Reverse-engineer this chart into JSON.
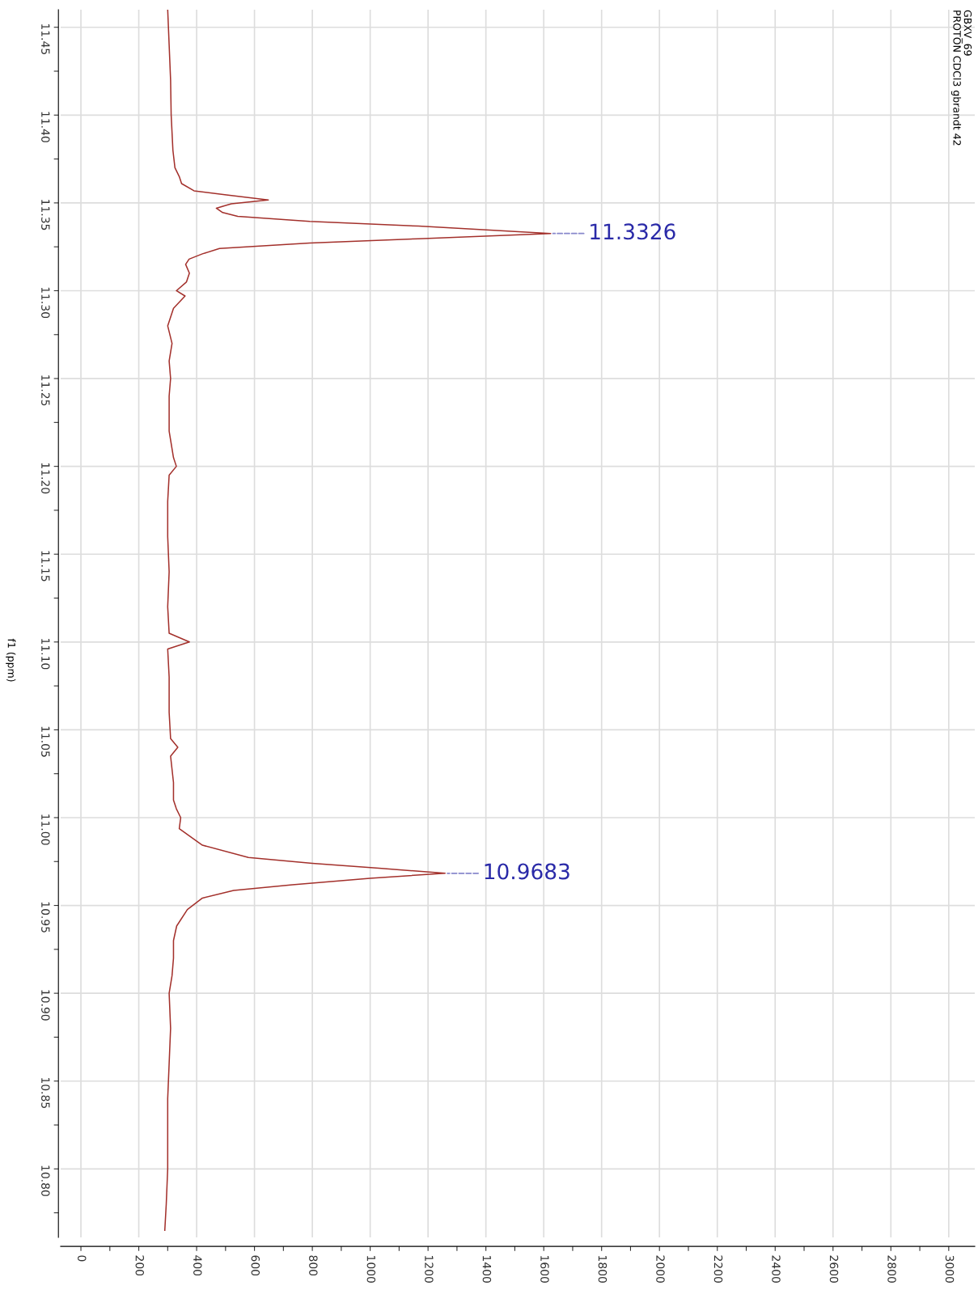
{
  "chart_data": {
    "type": "line",
    "title": "GBXV_69",
    "subtitle": "PROTON CDCl3 gbrandt 42",
    "ylabel": "f1 (ppm)",
    "series": [
      {
        "color": "#a3302b",
        "values": [
          11.46,
          11.44,
          11.42,
          11.4,
          11.38,
          11.37,
          11.365,
          11.361,
          11.3569,
          11.3545,
          11.3517,
          11.3495,
          11.347,
          11.3445,
          11.3423,
          11.3395,
          11.3368,
          11.3326,
          11.3296,
          11.3272,
          11.324,
          11.321,
          11.318,
          11.315,
          11.31,
          11.305,
          11.3,
          11.297,
          11.29,
          11.28,
          11.27,
          11.26,
          11.25,
          11.24,
          11.22,
          11.205,
          11.2,
          11.195,
          11.18,
          11.16,
          11.14,
          11.12,
          11.105,
          11.1,
          11.096,
          11.08,
          11.06,
          11.045,
          11.04,
          11.035,
          11.02,
          11.01,
          11.005,
          11.0,
          10.9937,
          10.9843,
          10.9773,
          10.974,
          10.9712,
          10.9683,
          10.9655,
          10.9618,
          10.9585,
          10.9542,
          10.9477,
          10.9383,
          10.93,
          10.92,
          10.91,
          10.9,
          10.88,
          10.86,
          10.84,
          10.82,
          10.8,
          10.78,
          10.765
        ],
        "x": [
          300,
          305,
          310,
          312,
          318,
          325,
          340,
          348,
          391,
          503,
          648,
          520,
          468,
          490,
          542,
          791,
          1167,
          1624,
          1167,
          791,
          479,
          420,
          374,
          362,
          375,
          365,
          330,
          360,
          320,
          300,
          315,
          305,
          310,
          305,
          305,
          320,
          330,
          305,
          300,
          300,
          305,
          300,
          305,
          375,
          300,
          305,
          305,
          310,
          335,
          310,
          320,
          320,
          330,
          345,
          340,
          420,
          579,
          800,
          1030,
          1259,
          999,
          731,
          528,
          420,
          368,
          331,
          320,
          320,
          315,
          305,
          310,
          305,
          300,
          300,
          300,
          295,
          290
        ]
      }
    ],
    "annotations": [
      {
        "text": "11.3326",
        "x": 1624,
        "y": 11.3326
      },
      {
        "text": "10.9683",
        "x": 1259,
        "y": 10.9683
      }
    ],
    "ylim": [
      10.761,
      11.46
    ],
    "yticks": [
      {
        "value": 11.45,
        "label": "11.45"
      },
      {
        "value": 11.425,
        "label": null
      },
      {
        "value": 11.4,
        "label": "11.40"
      },
      {
        "value": 11.375,
        "label": null
      },
      {
        "value": 11.35,
        "label": "11.35"
      },
      {
        "value": 11.325,
        "label": null
      },
      {
        "value": 11.3,
        "label": "11.30"
      },
      {
        "value": 11.275,
        "label": null
      },
      {
        "value": 11.25,
        "label": "11.25"
      },
      {
        "value": 11.225,
        "label": null
      },
      {
        "value": 11.2,
        "label": "11.20"
      },
      {
        "value": 11.175,
        "label": null
      },
      {
        "value": 11.15,
        "label": "11.15"
      },
      {
        "value": 11.125,
        "label": null
      },
      {
        "value": 11.1,
        "label": "11.10"
      },
      {
        "value": 11.075,
        "label": null
      },
      {
        "value": 11.05,
        "label": "11.05"
      },
      {
        "value": 11.025,
        "label": null
      },
      {
        "value": 11.0,
        "label": "11.00"
      },
      {
        "value": 10.975,
        "label": null
      },
      {
        "value": 10.95,
        "label": "10.95"
      },
      {
        "value": 10.925,
        "label": null
      },
      {
        "value": 10.9,
        "label": "10.90"
      },
      {
        "value": 10.875,
        "label": null
      },
      {
        "value": 10.85,
        "label": "10.85"
      },
      {
        "value": 10.825,
        "label": null
      },
      {
        "value": 10.8,
        "label": "10.80"
      },
      {
        "value": 10.775,
        "label": null
      }
    ],
    "xlim": [
      -70,
      3090
    ],
    "xticks": [
      0,
      {
        "value": 100,
        "label": null
      },
      200,
      {
        "value": 300,
        "label": null
      },
      400,
      {
        "value": 500,
        "label": null
      },
      600,
      {
        "value": 700,
        "label": null
      },
      800,
      {
        "value": 900,
        "label": null
      },
      1000,
      {
        "value": 1100,
        "label": null
      },
      1200,
      {
        "value": 1300,
        "label": null
      },
      1400,
      {
        "value": 1500,
        "label": null
      },
      1600,
      {
        "value": 1700,
        "label": null
      },
      1800,
      {
        "value": 1900,
        "label": null
      },
      2000,
      {
        "value": 2100,
        "label": null
      },
      2200,
      {
        "value": 2300,
        "label": null
      },
      2400,
      {
        "value": 2500,
        "label": null
      },
      2600,
      {
        "value": 2700,
        "label": null
      },
      2800,
      {
        "value": 2900,
        "label": null
      },
      3000
    ],
    "grid": true,
    "legend": false,
    "marker": "none",
    "line_style": "solid"
  }
}
